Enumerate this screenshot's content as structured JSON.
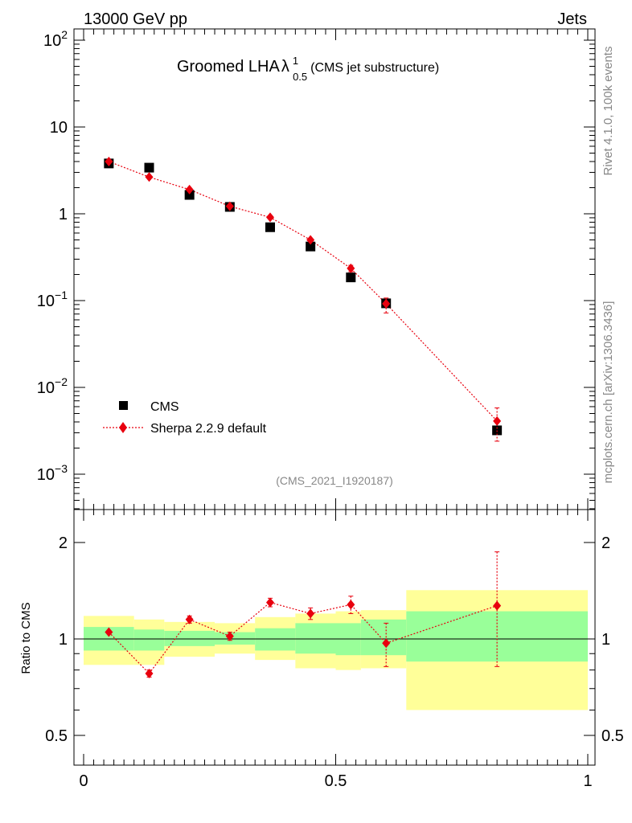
{
  "header": {
    "energy": "13000 GeV pp",
    "process": "Jets",
    "side_top": "Rivet 4.1.0,  100k events",
    "side_bottom": "mcplots.cern.ch [arXiv:1306.3436]"
  },
  "chart_data": {
    "type": "scatter",
    "title_main": "Groomed LHA",
    "title_symbol": "λ",
    "title_sup": "1",
    "title_sub": "0.5",
    "title_note": "(CMS jet substructure)",
    "analysis_id": "(CMS_2021_I1920187)",
    "legend": {
      "data": "CMS",
      "mc": "Sherpa 2.2.9 default"
    },
    "upper": {
      "yscale": "log",
      "ylim": [
        0.0004,
        150
      ],
      "yticks": [
        "10",
        "1"
      ],
      "ytick_values": [
        10,
        1
      ],
      "ypow_ticks": [
        {
          "value": 100,
          "base": "10",
          "exp": "2"
        },
        {
          "value": 0.1,
          "base": "10",
          "exp": "−1"
        },
        {
          "value": 0.01,
          "base": "10",
          "exp": "−2"
        },
        {
          "value": 0.001,
          "base": "10",
          "exp": "−3"
        }
      ]
    },
    "xlim": [
      -0.02,
      1.0
    ],
    "xticks": [
      "0",
      "0.5",
      "1"
    ],
    "xtick_values": [
      0,
      0.5,
      1
    ],
    "bins": [
      [
        0.0,
        0.1
      ],
      [
        0.1,
        0.16
      ],
      [
        0.16,
        0.26
      ],
      [
        0.26,
        0.34
      ],
      [
        0.34,
        0.42
      ],
      [
        0.42,
        0.5
      ],
      [
        0.5,
        0.55
      ],
      [
        0.55,
        0.64
      ],
      [
        0.64,
        1.0
      ]
    ],
    "cms": {
      "x": [
        0.05,
        0.13,
        0.21,
        0.29,
        0.37,
        0.45,
        0.53,
        0.6,
        0.82
      ],
      "y": [
        3.8,
        3.4,
        1.65,
        1.2,
        0.7,
        0.42,
        0.185,
        0.093,
        0.0032
      ]
    },
    "sherpa": {
      "x": [
        0.05,
        0.13,
        0.21,
        0.29,
        0.37,
        0.45,
        0.53,
        0.6,
        0.82
      ],
      "y": [
        4.0,
        2.65,
        1.9,
        1.22,
        0.91,
        0.5,
        0.235,
        0.092,
        0.0041
      ],
      "yerr_low": [
        0.0,
        0.0,
        0.0,
        0.0,
        0.0,
        0.0,
        0.02,
        0.02,
        0.0017
      ],
      "yerr_high": [
        0.0,
        0.0,
        0.0,
        0.0,
        0.0,
        0.0,
        0.02,
        0.015,
        0.0017
      ]
    },
    "ratio": {
      "ylabel": "Ratio to CMS",
      "yscale": "log",
      "ylim": [
        0.44,
        2.3
      ],
      "yticks": [
        "2",
        "1",
        "0.5"
      ],
      "ytick_values": [
        2,
        1,
        0.5
      ],
      "values": [
        1.05,
        0.78,
        1.15,
        1.02,
        1.3,
        1.2,
        1.28,
        0.97,
        1.27
      ],
      "err_low": [
        0.0,
        0.02,
        0.03,
        0.03,
        0.04,
        0.05,
        0.08,
        0.15,
        0.45
      ],
      "err_high": [
        0.0,
        0.02,
        0.03,
        0.03,
        0.04,
        0.05,
        0.08,
        0.15,
        0.6
      ],
      "band_green": [
        [
          0.92,
          1.09
        ],
        [
          0.92,
          1.07
        ],
        [
          0.95,
          1.06
        ],
        [
          0.96,
          1.05
        ],
        [
          0.92,
          1.08
        ],
        [
          0.9,
          1.12
        ],
        [
          0.89,
          1.12
        ],
        [
          0.89,
          1.15
        ],
        [
          0.85,
          1.22
        ]
      ],
      "band_yellow": [
        [
          0.83,
          1.18
        ],
        [
          0.83,
          1.15
        ],
        [
          0.88,
          1.13
        ],
        [
          0.9,
          1.12
        ],
        [
          0.86,
          1.17
        ],
        [
          0.81,
          1.2
        ],
        [
          0.8,
          1.22
        ],
        [
          0.81,
          1.23
        ],
        [
          0.6,
          1.42
        ]
      ]
    },
    "colors": {
      "mc": "#e8000e",
      "data": "#000000",
      "band_green": "#99ff99",
      "band_yellow": "#ffff99",
      "subtle_text": "#888888"
    }
  }
}
